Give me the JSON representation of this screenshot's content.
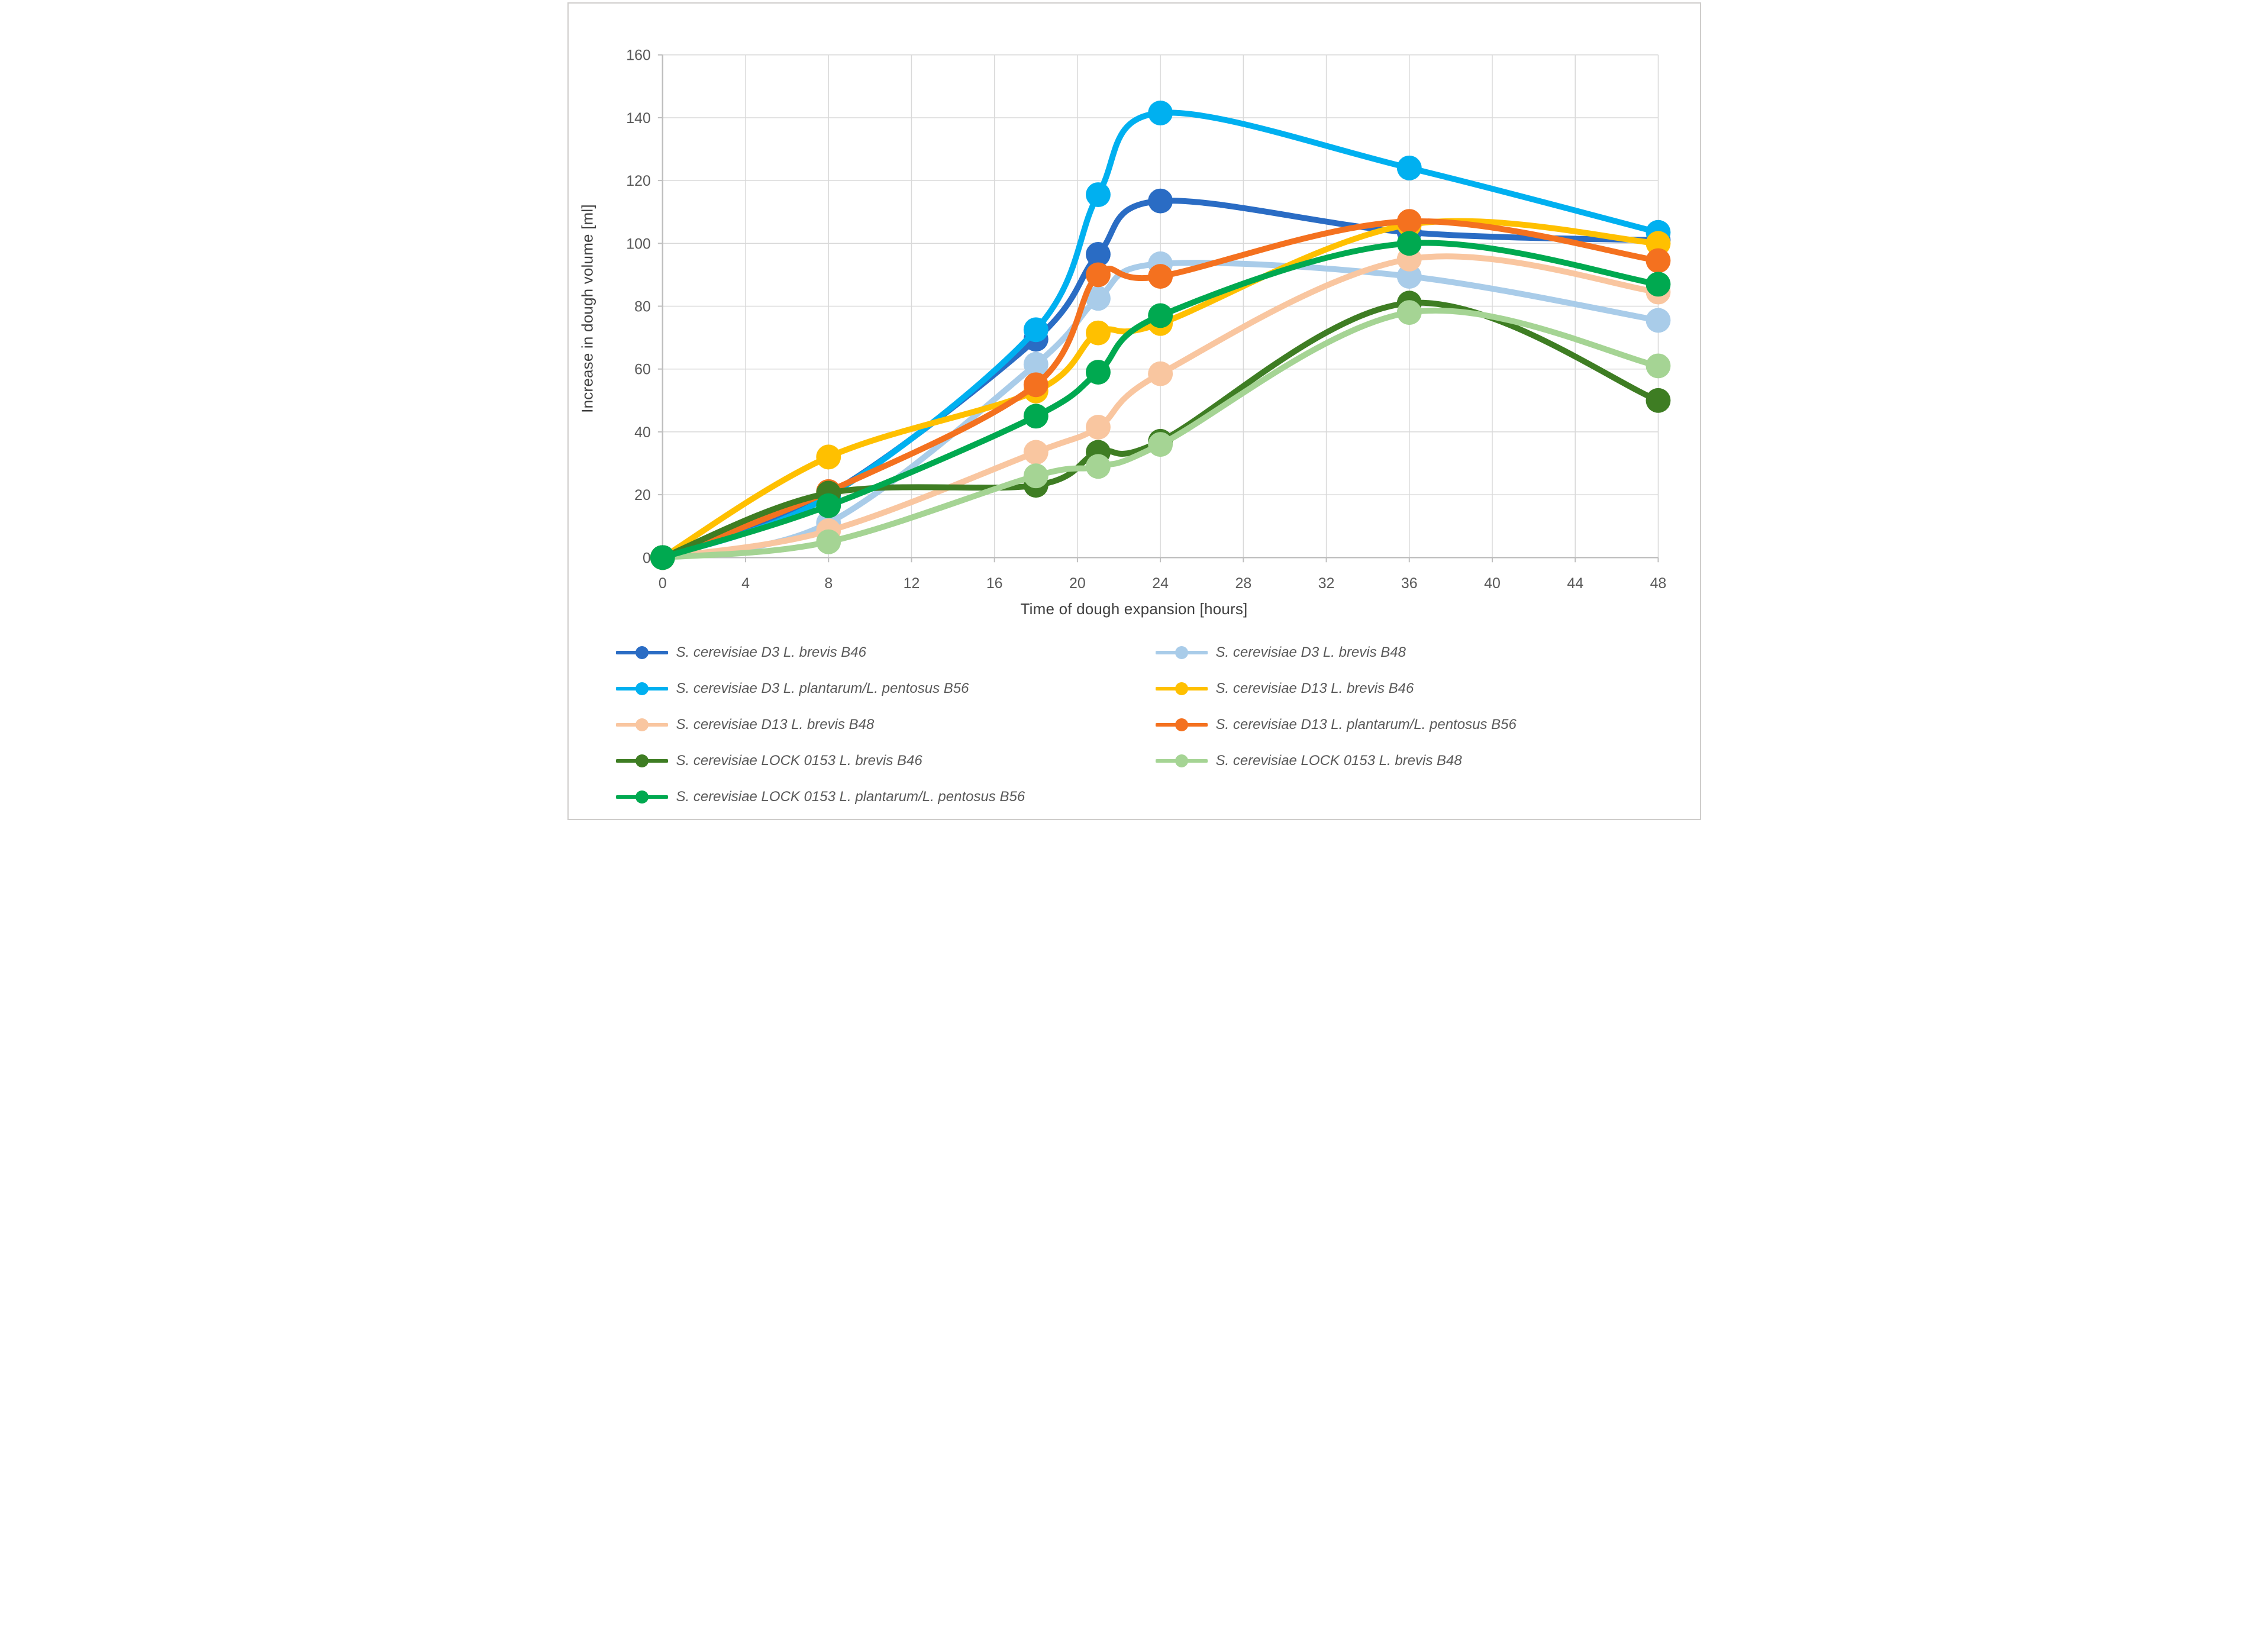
{
  "chart": {
    "x_title": "Time of dough expansion [hours]",
    "y_title": "Increase in dough volume [ml]",
    "colors": {
      "gridline": "#d9d9d9",
      "axis_line": "#bfbfbf",
      "tick_text": "#595959",
      "title_text": "#3f3f3f"
    }
  },
  "chart_data": {
    "type": "line",
    "title": "",
    "xlabel": "Time of dough expansion [hours]",
    "ylabel": "Increase in dough volume [ml]",
    "x": [
      0,
      8,
      18,
      21,
      24,
      36,
      48
    ],
    "xlim": [
      0,
      48
    ],
    "ylim": [
      0,
      160
    ],
    "x_ticks": [
      0,
      4,
      8,
      12,
      16,
      20,
      24,
      28,
      32,
      36,
      40,
      44,
      48
    ],
    "y_ticks": [
      0,
      20,
      40,
      60,
      80,
      100,
      120,
      140,
      160
    ],
    "grid": true,
    "legend_position": "bottom-two-columns",
    "marker": "circle",
    "smooth": true,
    "series": [
      {
        "name": "S. cerevisiae D3 L. brevis B46",
        "color": "#2a6cc4",
        "values": [
          0,
          20,
          69.5,
          96.5,
          113.5,
          103.5,
          101
        ]
      },
      {
        "name": "S. cerevisiae D3 L. brevis B48",
        "color": "#a9cce9",
        "values": [
          0,
          11,
          61.5,
          82.5,
          93.5,
          89.5,
          75.5
        ]
      },
      {
        "name": "S. cerevisiae D3 L. plantarum/L. pentosus B56",
        "color": "#00b0f0",
        "values": [
          0,
          19.5,
          72.5,
          115.5,
          141.5,
          124,
          103.5
        ]
      },
      {
        "name": "S. cerevisiae D13 L. brevis B46",
        "color": "#ffc000",
        "values": [
          0,
          32,
          53,
          71.5,
          74.5,
          106,
          100
        ]
      },
      {
        "name": "S. cerevisiae D13 L. brevis B48",
        "color": "#f9c6a0",
        "values": [
          0,
          8.5,
          33.5,
          41.5,
          58.5,
          95,
          84.5
        ]
      },
      {
        "name": "S. cerevisiae D13 L. plantarum/L. pentosus B56",
        "color": "#f4711f",
        "values": [
          0,
          21,
          55,
          90,
          89.5,
          107,
          94.5
        ]
      },
      {
        "name": "S. cerevisiae LOCK 0153 L. brevis B46",
        "color": "#3e7d23",
        "values": [
          0,
          20.5,
          23,
          33.5,
          37,
          81,
          50
        ]
      },
      {
        "name": "S. cerevisiae LOCK 0153 L. brevis B48",
        "color": "#a5d494",
        "values": [
          0,
          5,
          26,
          29,
          36,
          78,
          61
        ]
      },
      {
        "name": "S. cerevisiae LOCK 0153 L. plantarum/L. pentosus B56",
        "color": "#00a950",
        "values": [
          0,
          16.5,
          45,
          59,
          77,
          100,
          87
        ]
      }
    ]
  }
}
